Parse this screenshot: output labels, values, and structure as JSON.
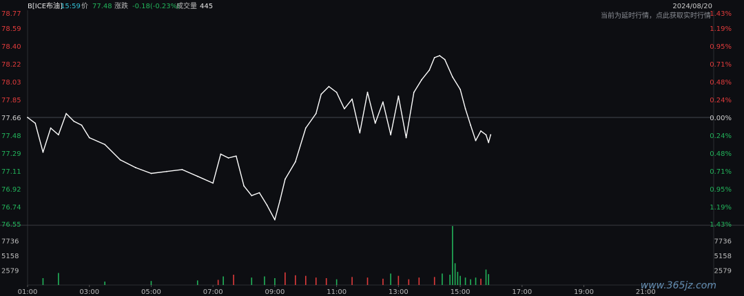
{
  "header": {
    "instrument": "B[ICE布油]",
    "time": "15:59",
    "price_label": "价",
    "price": "77.48",
    "change_label": "涨跌",
    "change": "-0.18(-0.23%)",
    "volume_label": "成交量",
    "volume": "445",
    "date": "2024/08/20",
    "notice": "当前为延时行情，点此获取实时行情"
  },
  "colors": {
    "background": "#0d0e12",
    "up": "#e03b3b",
    "down": "#22b35a",
    "line": "#ffffff",
    "grid": "#2b2d33",
    "accent": "#33c1d6"
  },
  "watermark": "www.365jz.com",
  "chart_data": [
    {
      "type": "line",
      "title": "",
      "reference_price": 77.66,
      "ylim": [
        76.55,
        78.77
      ],
      "y_ticks": [
        "78.77",
        "78.59",
        "78.40",
        "78.22",
        "78.03",
        "77.85",
        "77.66",
        "77.48",
        "77.29",
        "77.11",
        "76.92",
        "76.74",
        "76.55"
      ],
      "pct_ticks": [
        "1.43%",
        "1.19%",
        "0.95%",
        "0.71%",
        "0.48%",
        "0.24%",
        "0.00%",
        "0.24%",
        "0.48%",
        "0.71%",
        "0.95%",
        "1.19%",
        "1.43%"
      ],
      "x_ticks": [
        "01:00",
        "03:00",
        "05:00",
        "07:00",
        "09:00",
        "11:00",
        "13:00",
        "15:00",
        "17:00",
        "19:00",
        "21:00"
      ],
      "xlim_hours": [
        1,
        23.2
      ],
      "series": [
        {
          "x": [
            "01:00",
            "01:15",
            "01:30",
            "01:45",
            "02:00",
            "02:15",
            "02:30",
            "02:45",
            "03:00",
            "03:30",
            "04:00",
            "04:30",
            "05:00",
            "05:30",
            "06:00",
            "06:30",
            "07:00",
            "07:15",
            "07:30",
            "07:45",
            "08:00",
            "08:15",
            "08:30",
            "08:45",
            "09:00",
            "09:10",
            "09:20",
            "09:40",
            "10:00",
            "10:20",
            "10:30",
            "10:45",
            "11:00",
            "11:15",
            "11:30",
            "11:45",
            "12:00",
            "12:15",
            "12:30",
            "12:45",
            "13:00",
            "13:15",
            "13:30",
            "13:45",
            "14:00",
            "14:10",
            "14:20",
            "14:30",
            "14:45",
            "15:00",
            "15:10",
            "15:20",
            "15:30",
            "15:40",
            "15:50",
            "15:55",
            "15:59"
          ],
          "values": [
            77.66,
            77.6,
            77.3,
            77.55,
            77.48,
            77.7,
            77.62,
            77.58,
            77.45,
            77.38,
            77.22,
            77.14,
            77.08,
            77.1,
            77.12,
            77.05,
            76.98,
            77.28,
            77.24,
            77.26,
            76.95,
            76.85,
            76.88,
            76.75,
            76.6,
            76.8,
            77.02,
            77.2,
            77.55,
            77.7,
            77.9,
            77.98,
            77.92,
            77.75,
            77.85,
            77.5,
            77.92,
            77.6,
            77.82,
            77.48,
            77.88,
            77.45,
            77.92,
            78.05,
            78.15,
            78.28,
            78.3,
            78.26,
            78.08,
            77.95,
            77.75,
            77.58,
            77.42,
            77.52,
            77.48,
            77.4,
            77.48
          ]
        }
      ]
    },
    {
      "type": "bar",
      "title": "",
      "ylim": [
        0,
        10314
      ],
      "y_ticks": [
        "7736",
        "5158",
        "2579"
      ],
      "note": "volume bars, red = up minute, green = down minute",
      "series": [
        {
          "x": [
            "01:30",
            "02:00",
            "03:30",
            "05:00",
            "06:30",
            "07:10",
            "07:20",
            "07:40",
            "08:15",
            "08:40",
            "09:00",
            "09:20",
            "09:40",
            "10:00",
            "10:20",
            "10:40",
            "11:00",
            "11:30",
            "12:00",
            "12:30",
            "12:45",
            "13:00",
            "13:20",
            "13:40",
            "14:10",
            "14:25",
            "14:40",
            "14:45",
            "14:50",
            "14:55",
            "15:00",
            "15:10",
            "15:20",
            "15:30",
            "15:40",
            "15:50",
            "15:55"
          ],
          "values": [
            1200,
            2100,
            600,
            700,
            800,
            900,
            1500,
            1800,
            1300,
            1500,
            1200,
            2200,
            1700,
            1600,
            1300,
            1200,
            1000,
            1400,
            1300,
            1100,
            2000,
            1600,
            1000,
            1300,
            1400,
            2000,
            1800,
            10300,
            3800,
            2300,
            1600,
            1300,
            1000,
            1300,
            1100,
            2700,
            1900
          ]
        }
      ]
    }
  ]
}
